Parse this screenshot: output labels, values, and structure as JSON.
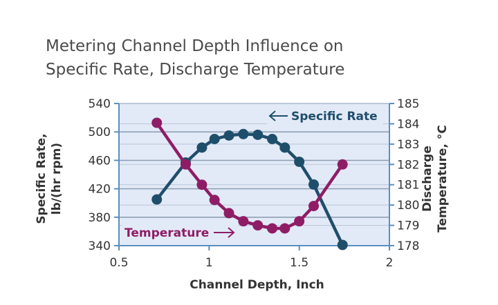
{
  "chart_data": {
    "type": "line",
    "title_lines": [
      "Metering Channel Depth Influence on",
      "Specific Rate, Discharge Temperature"
    ],
    "xlabel": "Channel Depth, Inch",
    "ylabel_lines": [
      "Specific Rate,",
      "lb/(hr rpm)"
    ],
    "y2label_lines": [
      "Discharge",
      "Temperature, °C"
    ],
    "xlim": [
      0.5,
      2
    ],
    "ylim": [
      340,
      540
    ],
    "y2lim": [
      178,
      185
    ],
    "xticks": [
      "0.5",
      "1",
      "1.5",
      "2"
    ],
    "yticks": [
      "340",
      "380",
      "420",
      "460",
      "500",
      "540"
    ],
    "y2ticks": [
      "178",
      "179",
      "180",
      "181",
      "182",
      "183",
      "184",
      "185"
    ],
    "series": [
      {
        "name": "Specific Rate",
        "axis": "left",
        "color": "#1f4e6b",
        "x": [
          0.71,
          0.87,
          0.96,
          1.03,
          1.11,
          1.19,
          1.27,
          1.35,
          1.42,
          1.5,
          1.58,
          1.74
        ],
        "y": [
          405,
          457,
          478,
          490,
          495,
          497,
          496,
          490,
          478,
          458,
          426,
          341
        ]
      },
      {
        "name": "Temperature",
        "axis": "right",
        "color": "#8e1d66",
        "x": [
          0.71,
          0.87,
          0.96,
          1.03,
          1.11,
          1.19,
          1.27,
          1.35,
          1.42,
          1.5,
          1.58,
          1.74
        ],
        "y": [
          184.05,
          182.0,
          181.0,
          180.25,
          179.6,
          179.2,
          179.0,
          178.85,
          178.85,
          179.2,
          179.95,
          182.0
        ]
      }
    ],
    "annotations": [
      {
        "text": "Specific Rate",
        "arrow": "left",
        "series": "Specific Rate"
      },
      {
        "text": "Temperature",
        "arrow": "right",
        "series": "Temperature"
      }
    ],
    "grid": true,
    "background": "#e3eaf7",
    "gridColor": "#8ea0b4",
    "axisColor": "#5b8ec0"
  }
}
